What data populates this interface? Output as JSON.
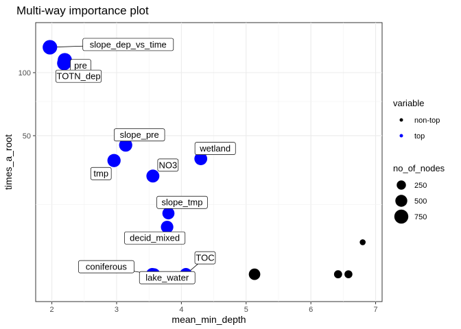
{
  "chart_data": {
    "type": "scatter",
    "title": "Multi-way importance plot",
    "xlabel": "mean_min_depth",
    "ylabel": "times_a_root",
    "xlim": [
      1.75,
      7.1
    ],
    "y_scale": "sqrt",
    "y_ticks": [
      50,
      100
    ],
    "x_ticks": [
      2,
      3,
      4,
      5,
      6,
      7
    ],
    "grid": true,
    "legend_placement": "right",
    "colors": {
      "top": "#0000ff",
      "non-top": "#000000"
    },
    "legend": {
      "color_title": "variable",
      "color_entries": [
        {
          "label": "non-top",
          "key": "non-top"
        },
        {
          "label": "top",
          "key": "top"
        }
      ],
      "size_title": "no_of_nodes",
      "size_entries": [
        {
          "label": "250",
          "value": 250
        },
        {
          "label": "500",
          "value": 500
        },
        {
          "label": "750",
          "value": 750
        }
      ]
    },
    "points": [
      {
        "label": "slope_dep_vs_time",
        "x": 1.97,
        "y": 125,
        "group": "top",
        "nodes": 820
      },
      {
        "label": "pre",
        "x": 2.2,
        "y": 112,
        "group": "top",
        "nodes": 780
      },
      {
        "label": "TOTN_dep",
        "x": 2.19,
        "y": 109,
        "group": "top",
        "nodes": 770
      },
      {
        "label": "slope_pre",
        "x": 3.14,
        "y": 44,
        "group": "top",
        "nodes": 640
      },
      {
        "label": "wetland",
        "x": 4.3,
        "y": 36,
        "group": "top",
        "nodes": 600
      },
      {
        "label": "tmp",
        "x": 2.96,
        "y": 35,
        "group": "top",
        "nodes": 650
      },
      {
        "label": "NO3",
        "x": 3.56,
        "y": 27,
        "group": "top",
        "nodes": 620
      },
      {
        "label": "slope_tmp",
        "x": 3.8,
        "y": 12,
        "group": "top",
        "nodes": 520
      },
      {
        "label": "decid_mixed",
        "x": 3.78,
        "y": 8,
        "group": "top",
        "nodes": 560
      },
      {
        "label": "coniferous",
        "x": 3.55,
        "y": 0.4,
        "group": "top",
        "nodes": 560
      },
      {
        "label": "lake_water",
        "x": 3.58,
        "y": 0.4,
        "group": "top",
        "nodes": 500
      },
      {
        "label": "TOC",
        "x": 4.07,
        "y": 0.4,
        "group": "top",
        "nodes": 560
      },
      {
        "label": "",
        "x": 5.13,
        "y": 0.4,
        "group": "non-top",
        "nodes": 450
      },
      {
        "label": "",
        "x": 6.42,
        "y": 0.4,
        "group": "non-top",
        "nodes": 170
      },
      {
        "label": "",
        "x": 6.58,
        "y": 0.4,
        "group": "non-top",
        "nodes": 160
      },
      {
        "label": "",
        "x": 6.8,
        "y": 4.5,
        "group": "non-top",
        "nodes": 60
      }
    ]
  }
}
